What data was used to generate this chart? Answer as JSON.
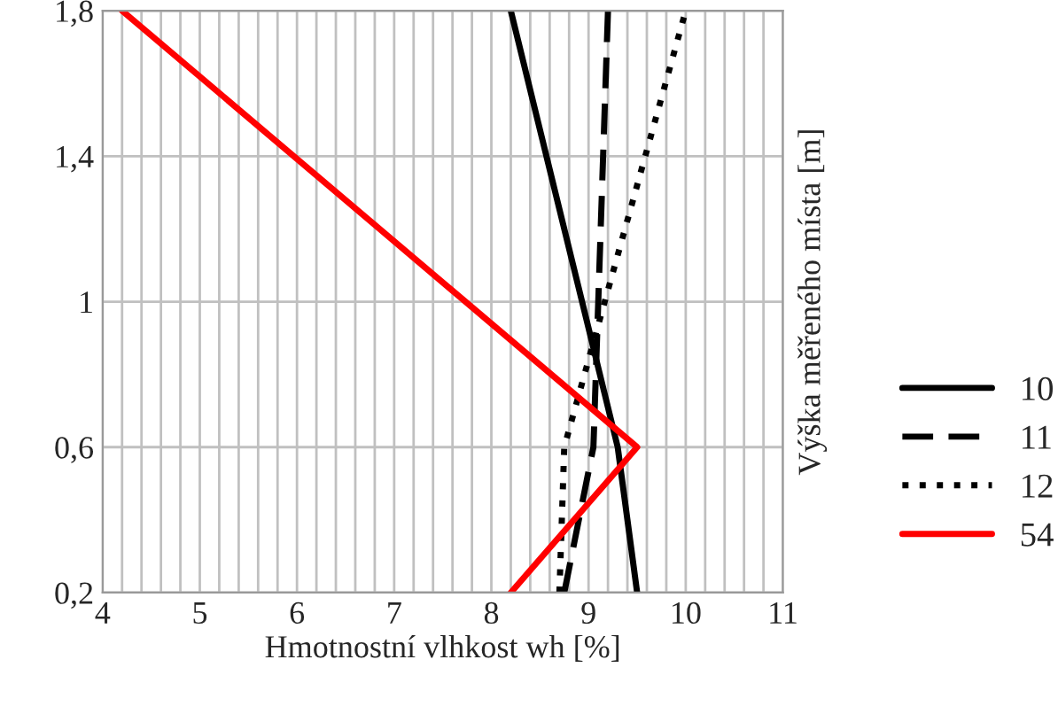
{
  "chart_data": {
    "type": "line",
    "xlabel": "Hmotnostní vlhkost wh [%]",
    "ylabel": "Výška měřeného místa [m]",
    "xlim": [
      4,
      11
    ],
    "ylim": [
      0.2,
      1.8
    ],
    "xticks": [
      4,
      {
        "value": 4.2,
        "label": null
      },
      {
        "value": 4.4,
        "label": null
      },
      {
        "value": 4.6,
        "label": null
      },
      {
        "value": 4.8,
        "label": null
      },
      5,
      {
        "value": 5.2,
        "label": null
      },
      {
        "value": 5.4,
        "label": null
      },
      {
        "value": 5.6,
        "label": null
      },
      {
        "value": 5.8,
        "label": null
      },
      6,
      {
        "value": 6.2,
        "label": null
      },
      {
        "value": 6.4,
        "label": null
      },
      {
        "value": 6.6,
        "label": null
      },
      {
        "value": 6.8,
        "label": null
      },
      7,
      {
        "value": 7.2,
        "label": null
      },
      {
        "value": 7.4,
        "label": null
      },
      {
        "value": 7.6,
        "label": null
      },
      {
        "value": 7.8,
        "label": null
      },
      8,
      {
        "value": 8.2,
        "label": null
      },
      {
        "value": 8.4,
        "label": null
      },
      {
        "value": 8.6,
        "label": null
      },
      {
        "value": 8.8,
        "label": null
      },
      9,
      {
        "value": 9.2,
        "label": null
      },
      {
        "value": 9.4,
        "label": null
      },
      {
        "value": 9.6,
        "label": null
      },
      {
        "value": 9.8,
        "label": null
      },
      10,
      {
        "value": 10.2,
        "label": null
      },
      {
        "value": 10.4,
        "label": null
      },
      {
        "value": 10.6,
        "label": null
      },
      {
        "value": 10.8,
        "label": null
      },
      11
    ],
    "yticks": [
      {
        "value": 0.2,
        "label": "0,2"
      },
      {
        "value": 0.6,
        "label": "0,6"
      },
      {
        "value": 1,
        "label": "1"
      },
      {
        "value": 1.4,
        "label": "1,4"
      },
      {
        "value": 1.8,
        "label": "1,8"
      }
    ],
    "grid": true,
    "legend": "right",
    "marker": "none",
    "series": [
      {
        "name": "10",
        "color": "#000000",
        "line_style": "solid",
        "x": [
          9.5,
          9.3,
          8.2
        ],
        "values": [
          0.2,
          0.6,
          1.8
        ]
      },
      {
        "name": "11",
        "color": "#000000",
        "line_style": "dashed",
        "x": [
          8.75,
          9.05,
          9.2
        ],
        "values": [
          0.2,
          0.6,
          1.8
        ]
      },
      {
        "name": "12",
        "color": "#000000",
        "line_style": "dotted",
        "x": [
          8.7,
          8.75,
          10.0
        ],
        "values": [
          0.2,
          0.6,
          1.8
        ]
      },
      {
        "name": "54",
        "color": "#ff0000",
        "line_style": "solid",
        "x": [
          8.2,
          9.5,
          4.2
        ],
        "values": [
          0.2,
          0.6,
          1.8
        ]
      }
    ]
  }
}
